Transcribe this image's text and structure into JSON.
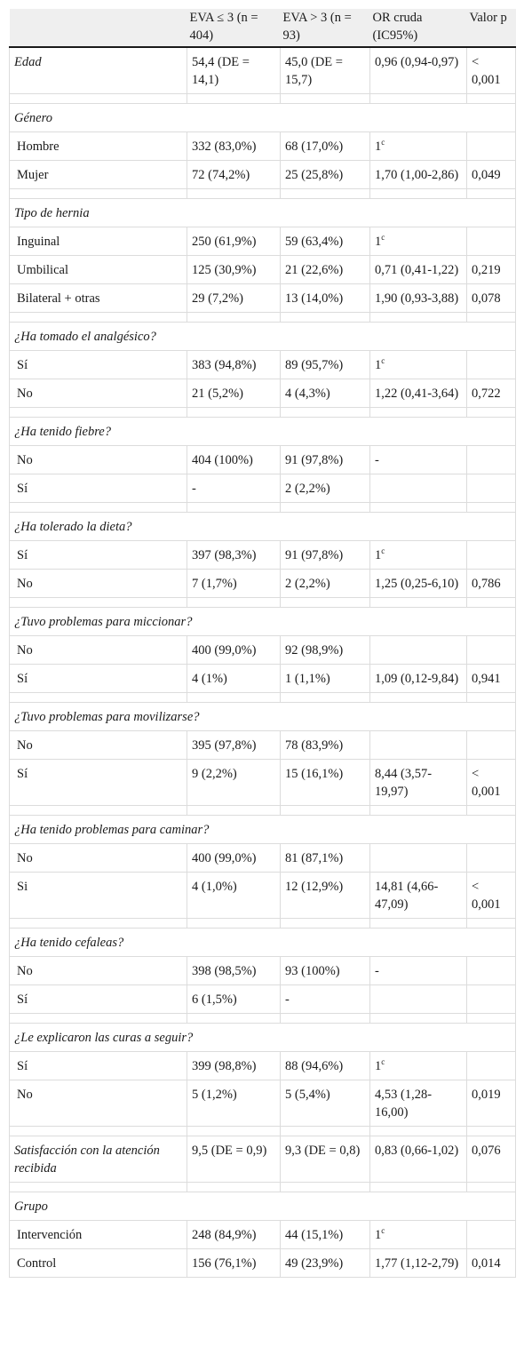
{
  "header": [
    "",
    "EVA ≤ 3 (n = 404)",
    "EVA > 3 (n = 93)",
    "OR cruda (IC95%)",
    "Valor p"
  ],
  "groups": [
    {
      "label": "Edad",
      "inline": true,
      "rows": [
        [
          "Edad",
          "54,4 (DE = 14,1)",
          "45,0 (DE = 15,7)",
          "0,96 (0,94-0,97)",
          "< 0,001"
        ]
      ]
    },
    {
      "label": "Género",
      "rows": [
        [
          "Hombre",
          "332 (83,0%)",
          "68 (17,0%)",
          "1",
          ""
        ],
        [
          "Mujer",
          "72 (74,2%)",
          "25 (25,8%)",
          "1,70 (1,00-2,86)",
          "0,049"
        ]
      ]
    },
    {
      "label": "Tipo de hernia",
      "rows": [
        [
          "Inguinal",
          "250 (61,9%)",
          "59 (63,4%)",
          "1",
          ""
        ],
        [
          "Umbilical",
          "125 (30,9%)",
          "21 (22,6%)",
          "0,71 (0,41-1,22)",
          "0,219"
        ],
        [
          "Bilateral + otras",
          "29 (7,2%)",
          "13 (14,0%)",
          "1,90 (0,93-3,88)",
          "0,078"
        ]
      ]
    },
    {
      "label": "¿Ha tomado el analgésico?",
      "rows": [
        [
          "Sí",
          "383 (94,8%)",
          "89 (95,7%)",
          "1",
          ""
        ],
        [
          "No",
          "21 (5,2%)",
          "4 (4,3%)",
          "1,22 (0,41-3,64)",
          "0,722"
        ]
      ]
    },
    {
      "label": "¿Ha tenido fiebre?",
      "rows": [
        [
          "No",
          "404 (100%)",
          "91 (97,8%)",
          "-",
          ""
        ],
        [
          "Sí",
          "-",
          "2 (2,2%)",
          "",
          ""
        ]
      ]
    },
    {
      "label": "¿Ha tolerado la dieta?",
      "rows": [
        [
          "Sí",
          "397 (98,3%)",
          "91 (97,8%)",
          "1",
          ""
        ],
        [
          "No",
          "7 (1,7%)",
          "2 (2,2%)",
          "1,25 (0,25-6,10)",
          "0,786"
        ]
      ]
    },
    {
      "label": "¿Tuvo problemas para miccionar?",
      "rows": [
        [
          "No",
          "400 (99,0%)",
          "92 (98,9%)",
          "",
          ""
        ],
        [
          "Sí",
          "4 (1%)",
          "1 (1,1%)",
          "1,09 (0,12-9,84)",
          "0,941"
        ]
      ]
    },
    {
      "label": "¿Tuvo problemas para movilizarse?",
      "rows": [
        [
          "No",
          "395 (97,8%)",
          "78 (83,9%)",
          "",
          ""
        ],
        [
          "Sí",
          "9 (2,2%)",
          "15 (16,1%)",
          "8,44 (3,57-19,97)",
          "< 0,001"
        ]
      ]
    },
    {
      "label": "¿Ha tenido problemas para caminar?",
      "rows": [
        [
          "No",
          "400 (99,0%)",
          "81 (87,1%)",
          "",
          ""
        ],
        [
          "Si",
          "4 (1,0%)",
          "12 (12,9%)",
          "14,81 (4,66-47,09)",
          "< 0,001"
        ]
      ]
    },
    {
      "label": "¿Ha tenido cefaleas?",
      "rows": [
        [
          "No",
          "398 (98,5%)",
          "93 (100%)",
          "-",
          ""
        ],
        [
          "Sí",
          "6 (1,5%)",
          "-",
          "",
          ""
        ]
      ]
    },
    {
      "label": "¿Le explicaron las curas a seguir?",
      "rows": [
        [
          "Sí",
          "399 (98,8%)",
          "88 (94,6%)",
          "1",
          ""
        ],
        [
          "No",
          "5 (1,2%)",
          "5 (5,4%)",
          "4,53 (1,28-16,00)",
          "0,019"
        ]
      ]
    },
    {
      "label": "Satisfacción con la atención recibida",
      "inline": true,
      "rows": [
        [
          "Satisfacción con la atención recibida",
          "9,5 (DE = 0,9)",
          "9,3 (DE = 0,8)",
          "0,83 (0,66-1,02)",
          "0,076"
        ]
      ]
    },
    {
      "label": "Grupo",
      "rows": [
        [
          "Intervención",
          "248 (84,9%)",
          "44 (15,1%)",
          "1",
          ""
        ],
        [
          "Control",
          "156 (76,1%)",
          "49 (23,9%)",
          "1,77 (1,12-2,79)",
          "0,014"
        ]
      ]
    }
  ],
  "reference_superscript": "c"
}
